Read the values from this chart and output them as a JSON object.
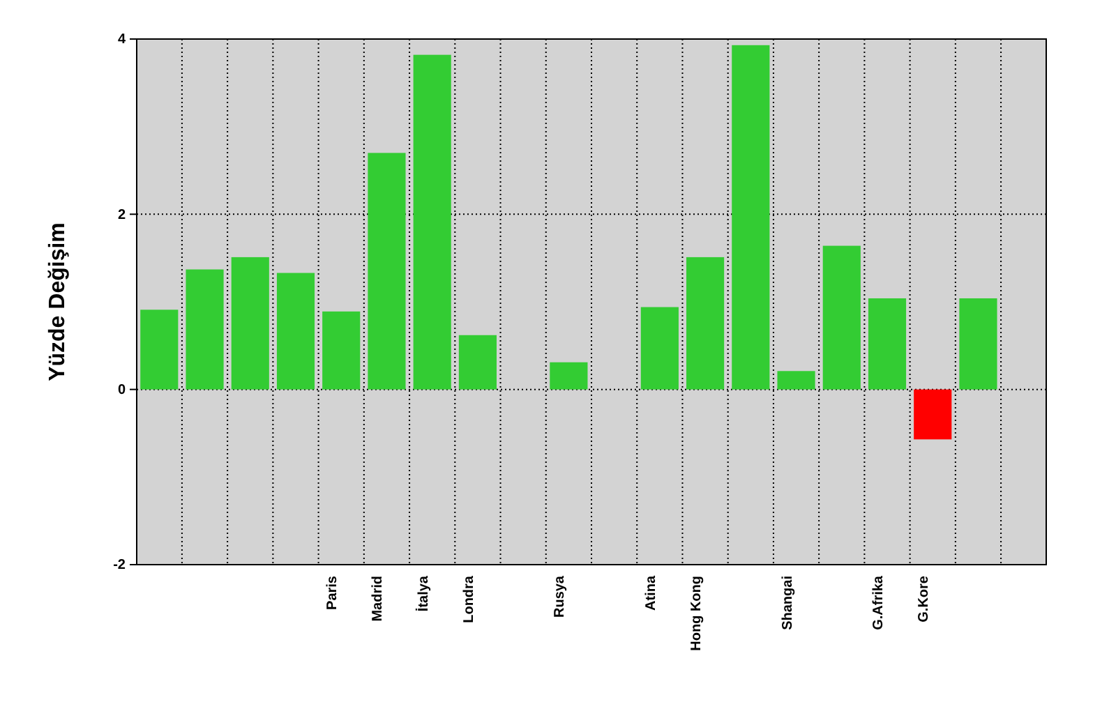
{
  "chart_data": {
    "type": "bar",
    "ylabel": "Yüzde Değişim",
    "categories": [
      null,
      null,
      null,
      null,
      "Paris",
      "Madrid",
      "İtalya",
      "Londra",
      null,
      "Rusya",
      null,
      "Atina",
      "Hong Kong",
      null,
      "Shangai",
      null,
      "G.Afrika",
      "G.Kore",
      null,
      null
    ],
    "values": [
      0.91,
      1.37,
      1.51,
      1.33,
      0.89,
      2.7,
      3.82,
      0.62,
      null,
      0.31,
      null,
      0.94,
      1.51,
      3.93,
      0.21,
      1.64,
      1.04,
      -0.57,
      1.04,
      null
    ],
    "colors": [
      "#33cc33",
      "#33cc33",
      "#33cc33",
      "#33cc33",
      "#33cc33",
      "#33cc33",
      "#33cc33",
      "#33cc33",
      null,
      "#33cc33",
      null,
      "#33cc33",
      "#33cc33",
      "#33cc33",
      "#33cc33",
      "#33cc33",
      "#33cc33",
      "#ff0000",
      "#33cc33",
      null
    ],
    "ylim": [
      -2,
      4
    ],
    "yticks": [
      -2,
      0,
      2,
      4
    ],
    "grid": true
  }
}
